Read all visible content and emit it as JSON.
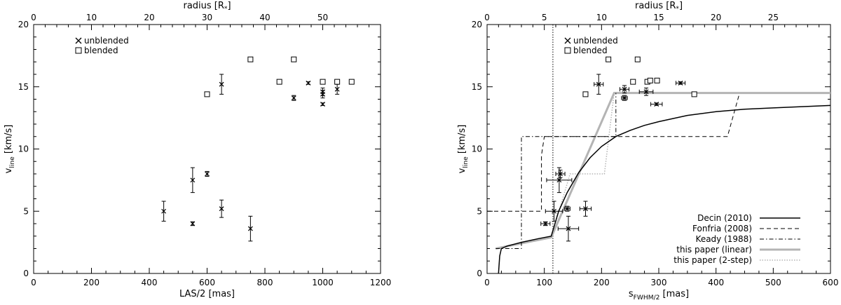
{
  "chart_data": [
    {
      "type": "scatter",
      "xlabel": "LAS/2 [mas]",
      "ylabel": "v_line [km/s]",
      "top_axis_label": "radius [R*]",
      "xlim": [
        0,
        1200
      ],
      "ylim": [
        0,
        20
      ],
      "x_ticks": [
        0,
        200,
        400,
        600,
        800,
        1000,
        1200
      ],
      "y_ticks": [
        0,
        5,
        10,
        15,
        20
      ],
      "top_ticks": [
        0,
        10,
        20,
        30,
        40,
        50
      ],
      "top_unit_per_x": 0.05,
      "grid": false,
      "legend_position": "top-left",
      "legend": [
        {
          "marker": "x",
          "label": "unblended"
        },
        {
          "marker": "square",
          "label": "blended"
        }
      ],
      "series": [
        {
          "name": "unblended",
          "marker": "x",
          "points": [
            {
              "x": 450,
              "y": 5.0,
              "yerr": 0.8
            },
            {
              "x": 550,
              "y": 7.5,
              "yerr": 1.0
            },
            {
              "x": 550,
              "y": 4.0,
              "yerr": 0.15
            },
            {
              "x": 600,
              "y": 8.0,
              "yerr": 0.2
            },
            {
              "x": 650,
              "y": 5.2,
              "yerr": 0.7
            },
            {
              "x": 650,
              "y": 15.2,
              "yerr": 0.8
            },
            {
              "x": 750,
              "y": 3.6,
              "yerr": 1.0
            },
            {
              "x": 900,
              "y": 14.1,
              "yerr": 0.2
            },
            {
              "x": 950,
              "y": 15.3,
              "yerr": 0.1
            },
            {
              "x": 1000,
              "y": 14.6,
              "yerr": 0.3
            },
            {
              "x": 1000,
              "y": 14.4,
              "yerr": 0.3
            },
            {
              "x": 1000,
              "y": 13.6,
              "yerr": 0.1
            },
            {
              "x": 1050,
              "y": 14.8,
              "yerr": 0.4
            }
          ]
        },
        {
          "name": "blended",
          "marker": "square",
          "points": [
            {
              "x": 600,
              "y": 14.4
            },
            {
              "x": 750,
              "y": 17.2
            },
            {
              "x": 850,
              "y": 15.4
            },
            {
              "x": 900,
              "y": 17.2
            },
            {
              "x": 1000,
              "y": 15.4
            },
            {
              "x": 1050,
              "y": 15.4
            },
            {
              "x": 1100,
              "y": 15.4
            }
          ]
        }
      ]
    },
    {
      "type": "line",
      "xlabel": "s_FWHM/2 [mas]",
      "ylabel": "v_line [km/s]",
      "top_axis_label": "radius [R*]",
      "xlim": [
        0,
        600
      ],
      "ylim": [
        0,
        20
      ],
      "x_ticks": [
        0,
        100,
        200,
        300,
        400,
        500,
        600
      ],
      "y_ticks": [
        0,
        5,
        10,
        15,
        20
      ],
      "top_ticks": [
        0,
        5,
        10,
        15,
        20,
        25
      ],
      "top_unit_per_x": 0.05,
      "vline_x": 115,
      "grid": false,
      "legend_position": "top-left",
      "legend": [
        {
          "marker": "x",
          "label": "unblended"
        },
        {
          "marker": "square",
          "label": "blended"
        }
      ],
      "curve_legend_position": "bottom-right",
      "series": [
        {
          "name": "unblended",
          "marker": "x",
          "points": [
            {
              "x": 102,
              "y": 4.0,
              "xerr": 8,
              "yerr": 0.15
            },
            {
              "x": 117,
              "y": 5.0,
              "xerr": 15,
              "yerr": 0.8
            },
            {
              "x": 126,
              "y": 7.5,
              "xerr": 22,
              "yerr": 1.0
            },
            {
              "x": 128,
              "y": 8.0,
              "xerr": 8,
              "yerr": 0.3
            },
            {
              "x": 140,
              "y": 5.2,
              "xerr": 5,
              "yerr": 0.2
            },
            {
              "x": 142,
              "y": 3.6,
              "xerr": 18,
              "yerr": 1.0
            },
            {
              "x": 172,
              "y": 5.2,
              "xerr": 10,
              "yerr": 0.6
            },
            {
              "x": 195,
              "y": 15.2,
              "xerr": 8,
              "yerr": 0.8
            },
            {
              "x": 240,
              "y": 14.1,
              "xerr": 5,
              "yerr": 0.2
            },
            {
              "x": 240,
              "y": 14.8,
              "xerr": 8,
              "yerr": 0.3
            },
            {
              "x": 278,
              "y": 14.6,
              "xerr": 12,
              "yerr": 0.3
            },
            {
              "x": 296,
              "y": 13.6,
              "xerr": 10,
              "yerr": 0.1
            },
            {
              "x": 338,
              "y": 15.3,
              "xerr": 8,
              "yerr": 0.1
            }
          ]
        },
        {
          "name": "blended",
          "marker": "square",
          "points": [
            {
              "x": 172,
              "y": 14.4
            },
            {
              "x": 212,
              "y": 17.2
            },
            {
              "x": 255,
              "y": 15.4
            },
            {
              "x": 263,
              "y": 17.2
            },
            {
              "x": 280,
              "y": 15.4
            },
            {
              "x": 285,
              "y": 15.5
            },
            {
              "x": 297,
              "y": 15.5
            },
            {
              "x": 362,
              "y": 14.4
            }
          ]
        },
        {
          "name": "Decin (2010)",
          "style": "solid-black",
          "points": [
            [
              20,
              0
            ],
            [
              22,
              1.4
            ],
            [
              25,
              2.0
            ],
            [
              35,
              2.2
            ],
            [
              60,
              2.5
            ],
            [
              90,
              2.8
            ],
            [
              112,
              3.0
            ],
            [
              125,
              5.0
            ],
            [
              140,
              6.5
            ],
            [
              160,
              8.1
            ],
            [
              180,
              9.3
            ],
            [
              200,
              10.2
            ],
            [
              225,
              11.0
            ],
            [
              250,
              11.5
            ],
            [
              275,
              11.9
            ],
            [
              300,
              12.2
            ],
            [
              350,
              12.7
            ],
            [
              400,
              13.0
            ],
            [
              450,
              13.2
            ],
            [
              500,
              13.3
            ],
            [
              550,
              13.4
            ],
            [
              600,
              13.5
            ]
          ]
        },
        {
          "name": "Fonfria (2008)",
          "style": "dashed-black",
          "points": [
            [
              0,
              5
            ],
            [
              95,
              5
            ],
            [
              95,
              9.5
            ],
            [
              100,
              11
            ],
            [
              420,
              11
            ],
            [
              440,
              14.3
            ]
          ]
        },
        {
          "name": "Keady (1988)",
          "style": "dashdot-black",
          "points": [
            [
              15,
              2
            ],
            [
              60,
              2
            ],
            [
              60,
              11
            ],
            [
              225,
              11
            ],
            [
              225,
              14.5
            ]
          ]
        },
        {
          "name": "this paper (linear)",
          "style": "solid-gray-thick",
          "points": [
            [
              15,
              2
            ],
            [
              112,
              2.9
            ],
            [
              222,
              14.5
            ],
            [
              600,
              14.5
            ]
          ]
        },
        {
          "name": "this paper (2-step)",
          "style": "dotted-gray",
          "points": [
            [
              15,
              2
            ],
            [
              112,
              2.9
            ],
            [
              145,
              8
            ],
            [
              205,
              8
            ],
            [
              222,
              14.5
            ],
            [
              600,
              14.5
            ]
          ]
        }
      ]
    }
  ]
}
